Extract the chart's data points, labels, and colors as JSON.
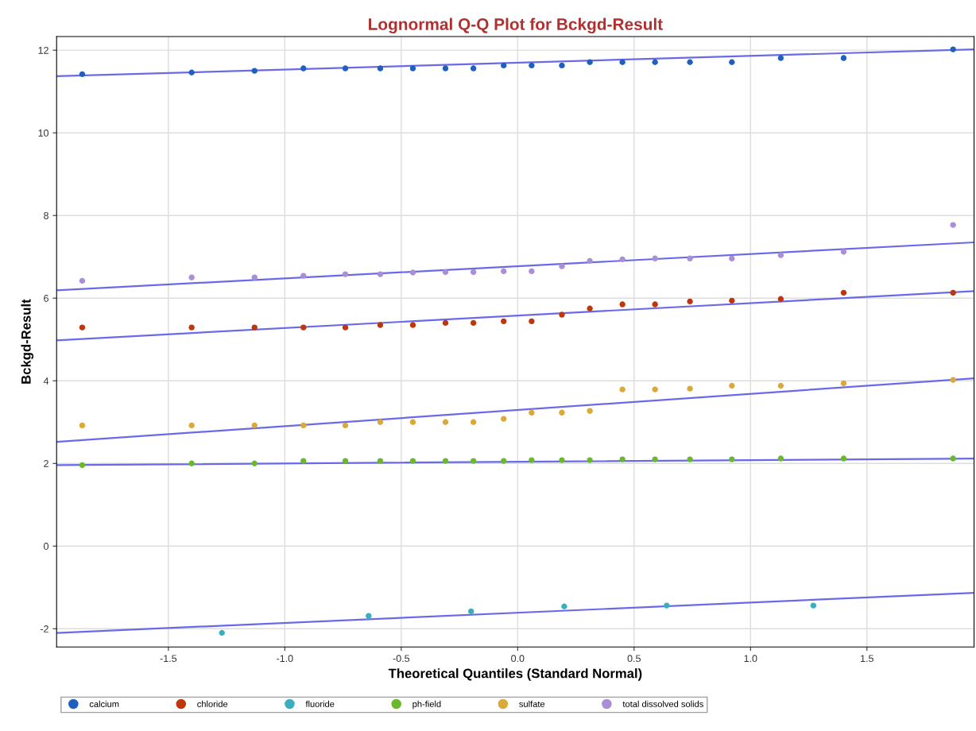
{
  "chart_data": {
    "type": "scatter",
    "title": "Lognormal Q-Q Plot for Bckgd-Result",
    "xlabel": "Theoretical Quantiles (Standard Normal)",
    "ylabel": "Bckgd-Result",
    "x": [
      -1.87,
      -1.4,
      -1.13,
      -0.92,
      -0.74,
      -0.59,
      -0.45,
      -0.31,
      -0.19,
      -0.06,
      0.06,
      0.19,
      0.31,
      0.45,
      0.59,
      0.74,
      0.92,
      1.13,
      1.4,
      1.87
    ],
    "series": [
      {
        "name": "calcium",
        "color": "#1f5fbf",
        "values": [
          11.42,
          11.46,
          11.5,
          11.56,
          11.56,
          11.56,
          11.56,
          11.56,
          11.56,
          11.63,
          11.63,
          11.63,
          11.71,
          11.71,
          11.71,
          11.71,
          11.71,
          11.81,
          11.81,
          12.02
        ]
      },
      {
        "name": "chloride",
        "color": "#c0360c",
        "values": [
          5.29,
          5.29,
          5.29,
          5.29,
          5.29,
          5.35,
          5.35,
          5.4,
          5.4,
          5.44,
          5.44,
          5.6,
          5.75,
          5.85,
          5.85,
          5.92,
          5.94,
          5.98,
          6.13,
          6.13
        ]
      },
      {
        "name": "fluoride",
        "color": "#3aaebf",
        "x": [
          -1.27,
          -0.64,
          -0.2,
          0.2,
          0.64,
          1.27
        ],
        "values": [
          -2.1,
          -1.69,
          -1.58,
          -1.46,
          -1.44,
          -1.44
        ]
      },
      {
        "name": "ph-field",
        "color": "#6ab82c",
        "values": [
          1.96,
          2.0,
          2.0,
          2.06,
          2.06,
          2.06,
          2.06,
          2.06,
          2.06,
          2.06,
          2.08,
          2.08,
          2.08,
          2.1,
          2.1,
          2.1,
          2.1,
          2.12,
          2.12,
          2.12
        ]
      },
      {
        "name": "sulfate",
        "color": "#d9a93a",
        "values": [
          2.92,
          2.92,
          2.92,
          2.92,
          2.92,
          3.0,
          3.0,
          3.0,
          3.0,
          3.08,
          3.23,
          3.23,
          3.27,
          3.79,
          3.79,
          3.81,
          3.88,
          3.88,
          3.94,
          4.02
        ]
      },
      {
        "name": "total dissolved solids",
        "color": "#a98fd6",
        "values": [
          6.42,
          6.5,
          6.5,
          6.54,
          6.58,
          6.58,
          6.62,
          6.63,
          6.63,
          6.65,
          6.65,
          6.77,
          6.9,
          6.94,
          6.96,
          6.96,
          6.96,
          7.04,
          7.12,
          7.77
        ]
      },
      {
        "type": "line",
        "marker": "none",
        "color": "#6a6ae8",
        "x": [
          -1.98,
          1.96
        ],
        "values": [
          11.37,
          12.02
        ]
      },
      {
        "type": "line",
        "marker": "none",
        "color": "#6a6ae8",
        "x": [
          -1.98,
          1.96
        ],
        "values": [
          4.98,
          6.17
        ]
      },
      {
        "type": "line",
        "marker": "none",
        "color": "#6a6ae8",
        "x": [
          -1.98,
          1.96
        ],
        "values": [
          -2.1,
          -1.13
        ]
      },
      {
        "type": "line",
        "marker": "none",
        "color": "#6a6ae8",
        "x": [
          -1.98,
          1.96
        ],
        "values": [
          1.96,
          2.12
        ]
      },
      {
        "type": "line",
        "marker": "none",
        "color": "#6a6ae8",
        "x": [
          -1.98,
          1.96
        ],
        "values": [
          2.52,
          4.06
        ]
      },
      {
        "type": "line",
        "marker": "none",
        "color": "#6a6ae8",
        "x": [
          -1.98,
          1.96
        ],
        "values": [
          6.19,
          7.35
        ]
      }
    ],
    "xlim": [
      -1.98,
      1.96
    ],
    "ylim": [
      -2.44,
      12.33
    ],
    "xticks": [
      -1.5,
      {
        "value": -1.0,
        "label": "-1.0"
      },
      -0.5,
      {
        "value": 0.0,
        "label": "0.0"
      },
      0.5,
      {
        "value": 1.0,
        "label": "1.0"
      },
      1.5
    ],
    "yticks": [
      -2,
      0,
      2,
      4,
      6,
      8,
      10,
      12
    ],
    "grid": true,
    "legend": "bottom",
    "marker": "circle",
    "line_style": "solid"
  }
}
